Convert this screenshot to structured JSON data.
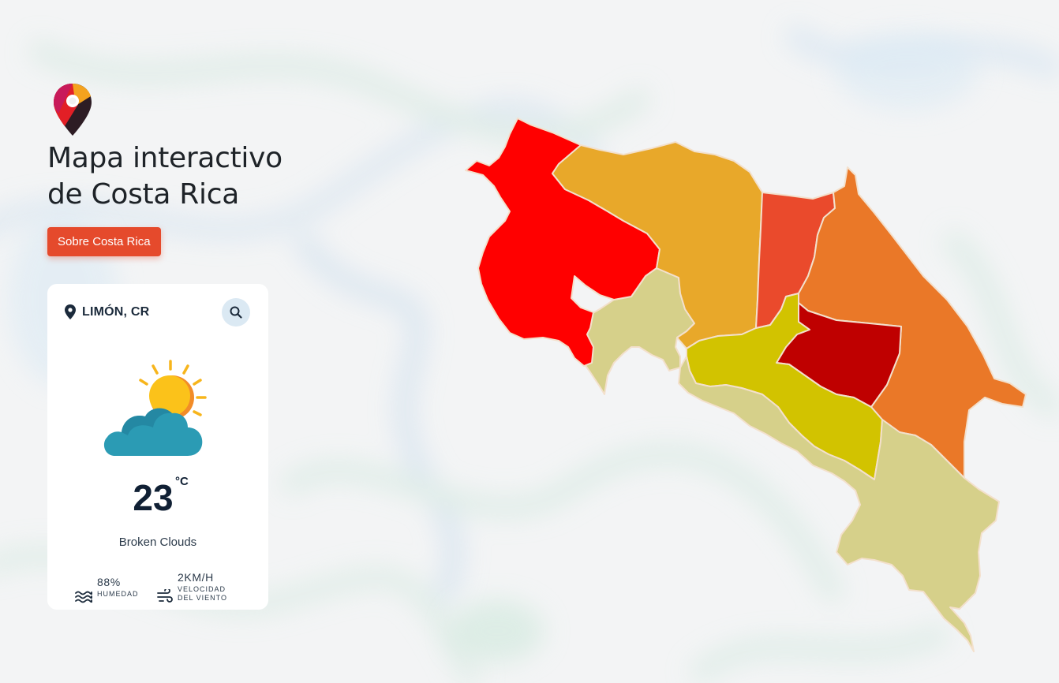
{
  "page": {
    "title": "Mapa interactivo de Costa Rica",
    "title_line1": "Mapa interactivo",
    "title_line2": "de Costa Rica"
  },
  "about_button": {
    "label": "Sobre Costa Rica",
    "color": "#e54a2c"
  },
  "weather": {
    "location": "LIMÓN, CR",
    "temperature": "23",
    "unit": "°C",
    "description": "Broken Clouds",
    "humidity": {
      "value": "88%",
      "label": "HUMEDAD"
    },
    "wind": {
      "value": "2KM/H",
      "label_line1": "VELOCIDAD",
      "label_line2": "DEL VIENTO"
    },
    "icon": "sun-behind-cloud-icon"
  },
  "map": {
    "provinces": [
      {
        "name": "Guanacaste",
        "color": "#ff0000"
      },
      {
        "name": "Alajuela",
        "color": "#e8a82a"
      },
      {
        "name": "Heredia",
        "color": "#ea4a2c"
      },
      {
        "name": "Limón",
        "color": "#ea7828"
      },
      {
        "name": "Cartago",
        "color": "#bf0000"
      },
      {
        "name": "San José",
        "color": "#d2c300"
      },
      {
        "name": "Puntarenas",
        "color": "#d6d08a"
      }
    ]
  }
}
